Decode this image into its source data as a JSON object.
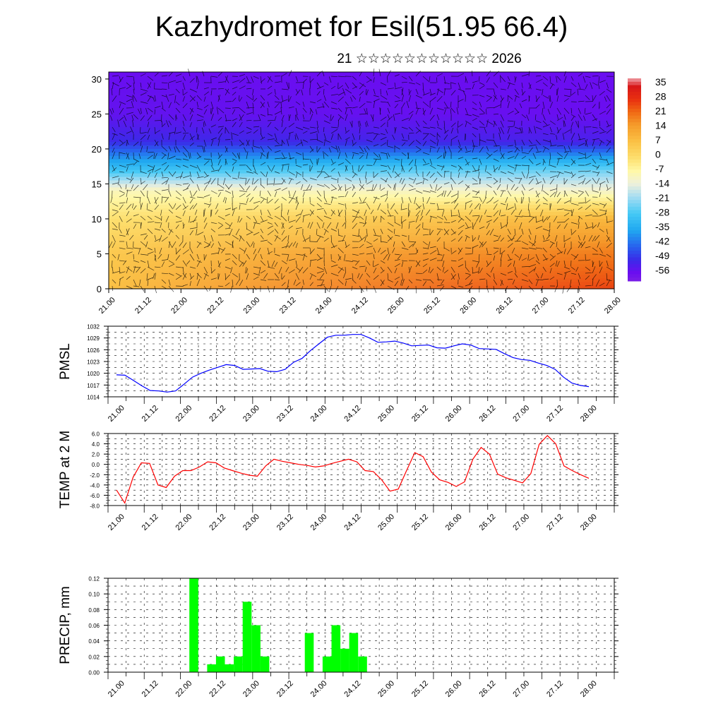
{
  "chart_data": [
    {
      "type": "heatmap",
      "name": "temperature-wind-cross-section",
      "title": "Kazhydromet for Esil(51.95 66.4)",
      "subtitle": "21 ☆☆☆☆☆☆☆☆☆☆☆ 2026",
      "xlabel": "",
      "ylabel": "",
      "x_ticks": [
        "21.00",
        "21.12",
        "22.00",
        "22.12",
        "23.00",
        "23.12",
        "24.00",
        "24.12",
        "25.00",
        "25.12",
        "26.00",
        "26.12",
        "27.00",
        "27.12",
        "28.00"
      ],
      "ylim": [
        0,
        31
      ],
      "y_ticks": [
        0,
        5,
        10,
        15,
        20,
        25,
        30
      ],
      "colorbar": {
        "labels": [
          "35",
          "28",
          "21",
          "14",
          "7",
          "0",
          "-7",
          "-14",
          "-21",
          "-28",
          "-35",
          "-42",
          "-49",
          "-56"
        ]
      },
      "level_profile": [
        {
          "level": 0,
          "start": 6,
          "end": 24
        },
        {
          "level": 5,
          "start": 4,
          "end": 18
        },
        {
          "level": 10,
          "start": -2,
          "end": 8
        },
        {
          "level": 14,
          "start": -10,
          "end": -12
        },
        {
          "level": 17,
          "start": -30,
          "end": -25
        },
        {
          "level": 21,
          "start": -50,
          "end": -52
        },
        {
          "level": 25,
          "start": -55,
          "end": -56
        },
        {
          "level": 31,
          "start": -56,
          "end": -56
        }
      ]
    },
    {
      "type": "line",
      "name": "pmsl",
      "ylabel": "PMSL",
      "ylim": [
        1014,
        1032
      ],
      "y_ticks": [
        "1014",
        "1017",
        "1020",
        "1023",
        "1026",
        "1029",
        "1032"
      ],
      "x_ticks": [
        "21.00",
        "21.12",
        "22.00",
        "22.12",
        "23.00",
        "23.12",
        "24.00",
        "24.12",
        "25.00",
        "25.12",
        "26.00",
        "26.12",
        "27.00",
        "27.12",
        "28.00"
      ],
      "series": [
        {
          "name": "PMSL",
          "color": "#0000ff",
          "values": [
            1019.6,
            1019.5,
            1018.2,
            1016.8,
            1015.6,
            1015.5,
            1015.2,
            1015.5,
            1017.2,
            1019.0,
            1020.0,
            1020.8,
            1021.5,
            1022.2,
            1022.0,
            1021.0,
            1021.1,
            1021.2,
            1020.5,
            1020.4,
            1021.0,
            1022.8,
            1023.8,
            1025.8,
            1027.5,
            1029.2,
            1029.7,
            1029.7,
            1029.9,
            1029.9,
            1029.0,
            1027.9,
            1028.0,
            1028.2,
            1027.7,
            1027.0,
            1027.1,
            1027.2,
            1026.5,
            1026.4,
            1027.0,
            1027.5,
            1027.2,
            1026.3,
            1026.2,
            1026.1,
            1025.0,
            1024.0,
            1023.5,
            1023.3,
            1022.6,
            1022.0,
            1021.0,
            1019.0,
            1017.5,
            1016.9,
            1016.6
          ]
        }
      ]
    },
    {
      "type": "line",
      "name": "temp-2m",
      "ylabel": "TEMP at 2 M",
      "ylim": [
        -8,
        6
      ],
      "y_ticks": [
        "-8.0",
        "-6.0",
        "-4.0",
        "-2.0",
        "0.0",
        "2.0",
        "4.0",
        "6.0"
      ],
      "x_ticks": [
        "21.00",
        "21.12",
        "22.00",
        "22.12",
        "23.00",
        "23.12",
        "24.00",
        "24.12",
        "25.00",
        "25.12",
        "26.00",
        "26.12",
        "27.00",
        "27.12",
        "28.00"
      ],
      "series": [
        {
          "name": "TEMP",
          "color": "#ff0000",
          "values": [
            -5.0,
            -7.5,
            -2.5,
            0.3,
            0.2,
            -4.0,
            -4.5,
            -2.3,
            -1.2,
            -1.2,
            -0.5,
            0.5,
            0.3,
            -0.7,
            -1.2,
            -1.7,
            -2.1,
            -2.3,
            -0.3,
            1.0,
            0.6,
            0.3,
            0.0,
            -0.2,
            -0.5,
            -0.3,
            0.2,
            0.6,
            1.0,
            0.5,
            -1.2,
            -1.4,
            -3.0,
            -5.2,
            -4.8,
            -1.2,
            2.3,
            1.5,
            -1.5,
            -3.0,
            -3.5,
            -4.3,
            -3.4,
            1.0,
            3.3,
            2.0,
            -1.9,
            -2.6,
            -3.1,
            -3.6,
            -1.8,
            3.9,
            5.6,
            4.0,
            -0.3,
            -1.2,
            -2.0,
            -2.7
          ]
        }
      ]
    },
    {
      "type": "bar",
      "name": "precip",
      "ylabel": "PRECIP, mm",
      "ylim": [
        0,
        0.12
      ],
      "y_ticks": [
        "0.00",
        "0.02",
        "0.04",
        "0.06",
        "0.08",
        "0.10",
        "0.12"
      ],
      "x_ticks": [
        "21.00",
        "21.12",
        "22.00",
        "22.12",
        "23.00",
        "23.12",
        "24.00",
        "24.12",
        "25.00",
        "25.12",
        "26.00",
        "26.12",
        "27.00",
        "27.12",
        "28.00"
      ],
      "bar_color": "#00ff00",
      "values": [
        0,
        0,
        0,
        0,
        0,
        0,
        0,
        0,
        0,
        0.12,
        0,
        0.01,
        0.02,
        0.01,
        0.02,
        0.09,
        0.06,
        0.02,
        0,
        0,
        0,
        0,
        0.05,
        0,
        0.02,
        0.06,
        0.03,
        0.05,
        0.02,
        0,
        0,
        0,
        0,
        0,
        0,
        0,
        0,
        0,
        0,
        0,
        0,
        0,
        0,
        0,
        0,
        0,
        0,
        0,
        0,
        0,
        0,
        0,
        0,
        0,
        0,
        0,
        0
      ]
    }
  ]
}
